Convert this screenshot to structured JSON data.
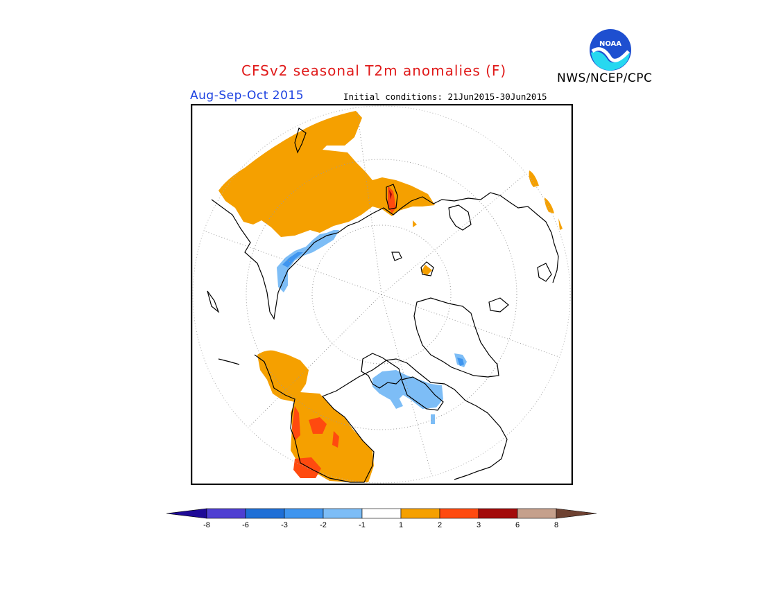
{
  "header": {
    "title": "CFSv2 seasonal T2m anomalies (F)",
    "agency": "NWS/NCEP/CPC",
    "season": "Aug-Sep-Oct 2015",
    "initial_conditions": "Initial conditions: 21Jun2015-30Jun2015",
    "logo_text": "NOAA"
  },
  "map": {
    "projection": "north-polar-stereographic",
    "variable": "T2m anomaly",
    "units": "F",
    "regions": [
      {
        "area": "Northern Russia / Siberia",
        "anomaly_class": "1 to 2"
      },
      {
        "area": "Northern Canada / Alaska",
        "anomaly_class": "1 to 2"
      },
      {
        "area": "Western Canada",
        "anomaly_class": "2 to 3"
      },
      {
        "area": "Kara Sea coast",
        "anomaly_class": "-2 to -1"
      },
      {
        "area": "Canadian Arctic Archipelago",
        "anomaly_class": "-2 to -1"
      },
      {
        "area": "Greenland",
        "anomaly_class": "-2 to -1"
      }
    ]
  },
  "legend": {
    "colors": [
      "#1e0a96",
      "#4f3fd2",
      "#1f6fd6",
      "#3f95ef",
      "#7dbdf6",
      "#ffffff",
      "#f5a000",
      "#ff4a0f",
      "#a30a0a",
      "#c5a08c",
      "#6e4232"
    ],
    "labels": [
      "-8",
      "-6",
      "-3",
      "-2",
      "-1",
      "1",
      "2",
      "3",
      "6",
      "8"
    ]
  }
}
